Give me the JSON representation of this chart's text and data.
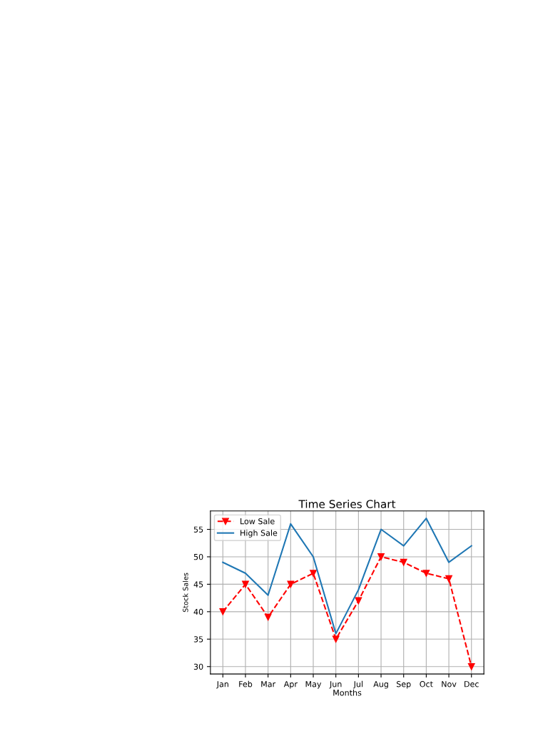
{
  "chart_data": {
    "type": "line",
    "title": "Time Series Chart",
    "xlabel": "Months",
    "ylabel": "Stock Sales",
    "categories": [
      "Jan",
      "Feb",
      "Mar",
      "Apr",
      "May",
      "Jun",
      "Jul",
      "Aug",
      "Sep",
      "Oct",
      "Nov",
      "Dec"
    ],
    "series": [
      {
        "name": "Low Sale",
        "color": "#ff0000",
        "marker": "triangle",
        "line_style": "dashed",
        "values": [
          40,
          45,
          39,
          45,
          47,
          35,
          42,
          50,
          49,
          47,
          46,
          30
        ]
      },
      {
        "name": "High Sale",
        "color": "#1f77b4",
        "values": [
          49,
          47,
          43,
          56,
          50,
          36,
          44,
          55,
          52,
          57,
          49,
          52
        ]
      }
    ],
    "ylim": [
      28.65,
      58.35
    ],
    "yticks": [
      30,
      35,
      40,
      45,
      50,
      55
    ],
    "grid": true,
    "legend": "top left"
  }
}
